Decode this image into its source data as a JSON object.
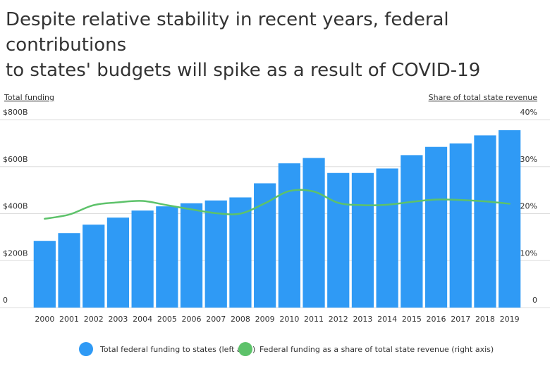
{
  "title": {
    "line1": "Despite relative stability in recent years, federal contributions",
    "line2": "to states' budgets will spike as a result of COVID-19"
  },
  "colors": {
    "bar": "#2f9af5",
    "line": "#5dc26a",
    "grid": "#dddddd",
    "text": "#333333"
  },
  "chart_data": {
    "type": "bar",
    "categories": [
      "2000",
      "2001",
      "2002",
      "2003",
      "2004",
      "2005",
      "2006",
      "2007",
      "2008",
      "2009",
      "2010",
      "2011",
      "2012",
      "2013",
      "2014",
      "2015",
      "2016",
      "2017",
      "2018",
      "2019"
    ],
    "ylabel": "Total funding",
    "y2label": "Share of total state revenue",
    "ylim": [
      0,
      800
    ],
    "y2lim": [
      0,
      40
    ],
    "y_ticks": [
      0,
      200,
      400,
      600,
      800
    ],
    "y_tick_labels": [
      "0",
      "$200B",
      "$400B",
      "$600B",
      "$800B"
    ],
    "y2_ticks": [
      0,
      10,
      20,
      30,
      40
    ],
    "y2_tick_labels": [
      "0",
      "10%",
      "20%",
      "30%",
      "40%"
    ],
    "grid": true,
    "legend_position": "bottom",
    "series": [
      {
        "name": "Total federal funding to states (left axis)",
        "type": "bar",
        "axis": "left",
        "values": [
          284,
          317,
          353,
          383,
          413,
          431,
          444,
          456,
          469,
          529,
          614,
          637,
          573,
          573,
          592,
          649,
          684,
          699,
          733,
          755
        ]
      },
      {
        "name": "Federal funding as a share of total state revenue (right axis)",
        "type": "line",
        "axis": "right",
        "values": [
          18.9,
          19.8,
          21.8,
          22.4,
          22.7,
          21.8,
          20.9,
          20.1,
          20.0,
          22.2,
          24.8,
          24.7,
          22.3,
          21.8,
          21.9,
          22.5,
          23.0,
          22.9,
          22.6,
          22.1
        ]
      }
    ]
  }
}
